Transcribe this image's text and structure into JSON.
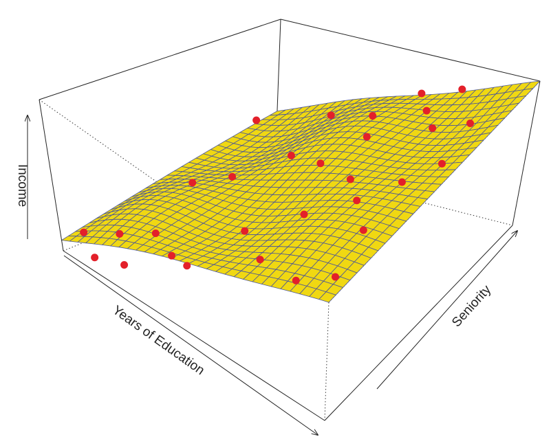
{
  "chart_data": {
    "type": "surface",
    "x_label": "Years of Education",
    "y_label": "Seniority",
    "z_label": "Income",
    "surface_color": "#f0d812",
    "mesh_color": "#4a5599",
    "point_color": "#e3202a",
    "x": [
      0.05,
      0.1,
      0.15,
      0.2,
      0.25,
      0.35,
      0.45,
      0.55,
      0.7,
      0.85,
      0.95,
      0.1,
      0.3,
      0.05,
      0.4,
      0.55,
      0.6,
      0.7,
      0.8,
      0.9,
      0.65,
      0.5,
      0.7,
      0.8,
      0.9,
      0.75,
      0.95,
      0.3,
      0.85,
      0.6
    ],
    "y": [
      0.05,
      0.03,
      0.1,
      0.05,
      0.15,
      0.1,
      0.05,
      0.2,
      0.08,
      0.05,
      0.1,
      0.5,
      0.45,
      0.85,
      0.6,
      0.55,
      0.7,
      0.5,
      0.4,
      0.3,
      0.35,
      0.85,
      0.85,
      0.75,
      0.8,
      0.95,
      0.6,
      0.9,
      0.55,
      0.95
    ],
    "z": [
      0.15,
      0.05,
      0.22,
      0.1,
      0.3,
      0.3,
      0.4,
      0.62,
      0.75,
      0.85,
      0.95,
      0.25,
      0.5,
      0.42,
      0.6,
      0.72,
      0.78,
      0.8,
      0.88,
      0.92,
      0.68,
      0.7,
      0.85,
      0.92,
      0.95,
      0.9,
      1.0,
      0.55,
      0.85,
      0.8
    ]
  }
}
